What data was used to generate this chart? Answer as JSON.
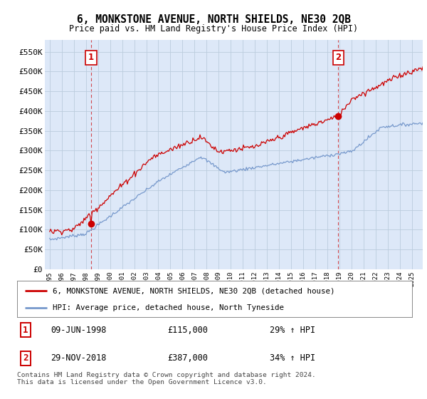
{
  "title": "6, MONKSTONE AVENUE, NORTH SHIELDS, NE30 2QB",
  "subtitle": "Price paid vs. HM Land Registry's House Price Index (HPI)",
  "legend_label_red": "6, MONKSTONE AVENUE, NORTH SHIELDS, NE30 2QB (detached house)",
  "legend_label_blue": "HPI: Average price, detached house, North Tyneside",
  "annotation1_date": "09-JUN-1998",
  "annotation1_price": "£115,000",
  "annotation1_hpi": "29% ↑ HPI",
  "annotation2_date": "29-NOV-2018",
  "annotation2_price": "£387,000",
  "annotation2_hpi": "34% ↑ HPI",
  "footnote": "Contains HM Land Registry data © Crown copyright and database right 2024.\nThis data is licensed under the Open Government Licence v3.0.",
  "ylim": [
    0,
    580000
  ],
  "yticks": [
    0,
    50000,
    100000,
    150000,
    200000,
    250000,
    300000,
    350000,
    400000,
    450000,
    500000,
    550000
  ],
  "ytick_labels": [
    "£0",
    "£50K",
    "£100K",
    "£150K",
    "£200K",
    "£250K",
    "£300K",
    "£350K",
    "£400K",
    "£450K",
    "£500K",
    "£550K"
  ],
  "red_color": "#cc0000",
  "blue_color": "#7799cc",
  "bg_color": "#dde8f8",
  "grid_color": "#bbccdd",
  "purchase1_year": 1998.44,
  "purchase1_value": 115000,
  "purchase2_year": 2018.91,
  "purchase2_value": 387000,
  "xlim_left": 1994.6,
  "xlim_right": 2025.9
}
